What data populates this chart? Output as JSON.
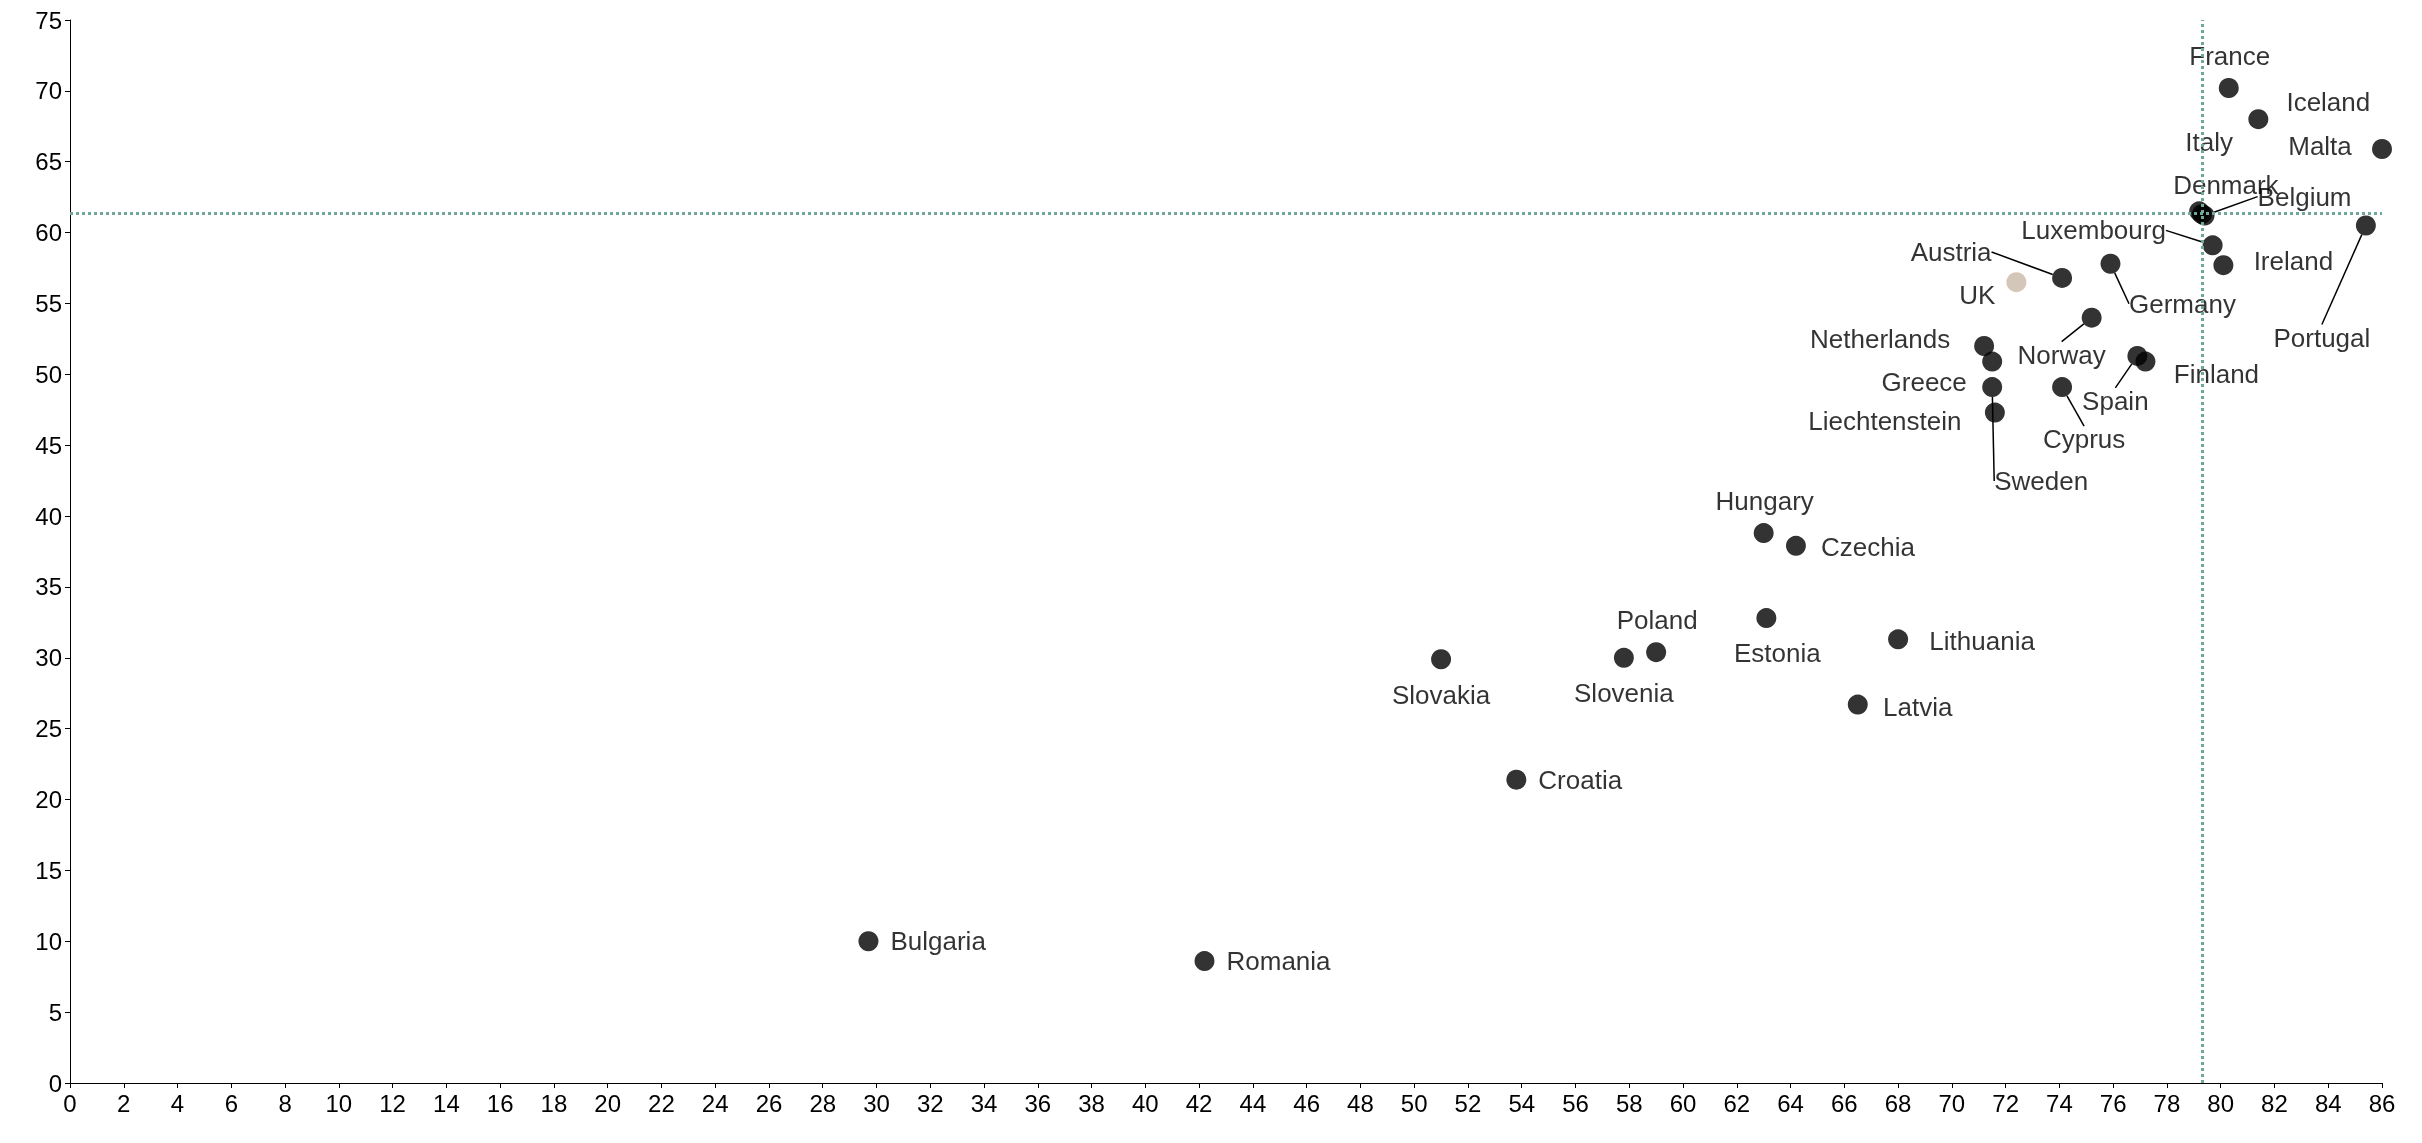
{
  "chart_data": {
    "type": "scatter",
    "xlim": [
      0,
      86
    ],
    "ylim": [
      0,
      75
    ],
    "xticks": [
      0,
      2,
      4,
      6,
      8,
      10,
      12,
      14,
      16,
      18,
      20,
      22,
      24,
      26,
      28,
      30,
      32,
      34,
      36,
      38,
      40,
      42,
      44,
      46,
      48,
      50,
      52,
      54,
      56,
      58,
      60,
      62,
      64,
      66,
      68,
      70,
      72,
      74,
      76,
      78,
      80,
      82,
      84,
      86
    ],
    "yticks": [
      0,
      5,
      10,
      15,
      20,
      25,
      30,
      35,
      40,
      45,
      50,
      55,
      60,
      65,
      70,
      75
    ],
    "grid": false,
    "marker": "circle",
    "series": [
      {
        "x": [
          80.3,
          81.4,
          86.0,
          79.2,
          79.3,
          79.4,
          79.7,
          80.1,
          85.4,
          74.1,
          72.4,
          75.9,
          75.2,
          71.2,
          71.5,
          71.5,
          71.6,
          77.2,
          76.9,
          74.1,
          63.0,
          64.2,
          63.1,
          68.0,
          66.5,
          59.0,
          57.8,
          51.0,
          53.8,
          29.7,
          42.2
        ],
        "values": [
          70.2,
          68.0,
          65.9,
          61.5,
          61.3,
          61.2,
          59.1,
          57.7,
          60.5,
          56.8,
          56.5,
          57.8,
          54.0,
          52.0,
          50.9,
          49.1,
          47.3,
          50.9,
          51.3,
          49.1,
          38.8,
          37.9,
          32.8,
          31.3,
          26.7,
          30.4,
          30.0,
          29.9,
          21.4,
          10.0,
          8.6
        ],
        "value_labels": [
          "France",
          "Iceland",
          "Malta",
          "Italy",
          "Denmark",
          "Belgium",
          "Luxembourg",
          "Ireland",
          "Portugal",
          "Austria",
          "UK",
          "Germany",
          "Norway",
          "Netherlands",
          "Greece",
          "Sweden",
          "Liechtenstein",
          "Finland",
          "Spain",
          "Cyprus",
          "Hungary",
          "Czechia",
          "Estonia",
          "Lithuania",
          "Latvia",
          "Poland",
          "Slovenia",
          "Slovakia",
          "Croatia",
          "Bulgaria",
          "Romania"
        ],
        "colors": [
          "#000000",
          "#000000",
          "#000000",
          "#000000",
          "#000000",
          "#000000",
          "#000000",
          "#000000",
          "#000000",
          "#000000",
          "#c9b8a8",
          "#000000",
          "#000000",
          "#000000",
          "#000000",
          "#000000",
          "#000000",
          "#000000",
          "#000000",
          "#000000",
          "#000000",
          "#000000",
          "#000000",
          "#000000",
          "#000000",
          "#000000",
          "#000000",
          "#000000",
          "#000000",
          "#000000",
          "#000000"
        ]
      }
    ],
    "ref_lines": [
      {
        "axis": "y",
        "value": 61.4,
        "color": "#6fa89a",
        "line_style": "dotted"
      },
      {
        "axis": "x",
        "value": 79.3,
        "color": "#6fa89a",
        "line_style": "dotted"
      }
    ]
  }
}
